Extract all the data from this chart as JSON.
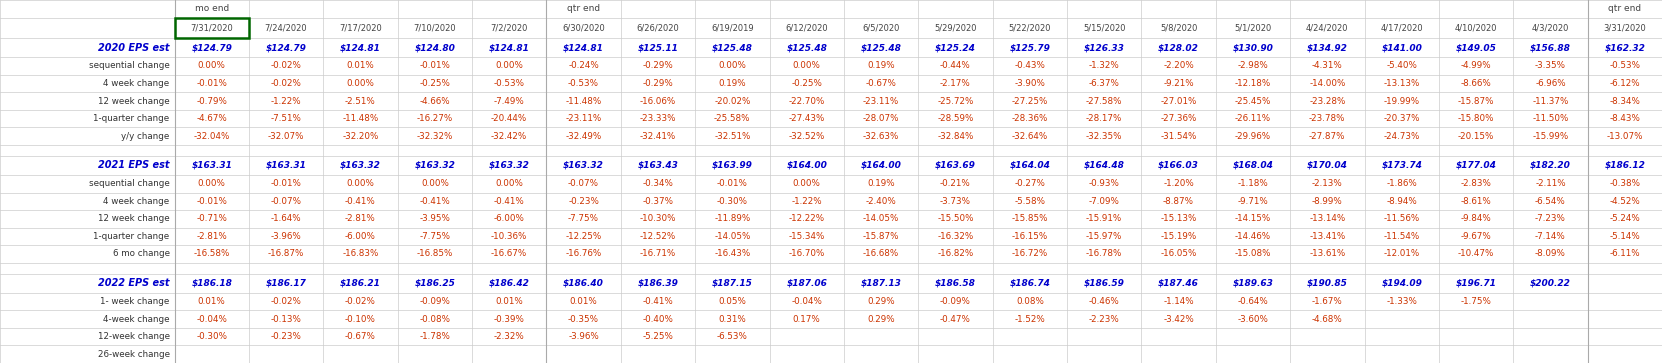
{
  "header_row2": [
    "",
    "7/31/2020",
    "7/24/2020",
    "7/17/2020",
    "7/10/2020",
    "7/2/2020",
    "6/30/2020",
    "6/26/2020",
    "6/19/2019",
    "6/12/2020",
    "6/5/2020",
    "5/29/2020",
    "5/22/2020",
    "5/15/2020",
    "5/8/2020",
    "5/1/2020",
    "4/24/2020",
    "4/17/2020",
    "4/10/2020",
    "4/3/2020",
    "3/31/2020"
  ],
  "section1_label": "2020 EPS est",
  "section1_rows": [
    [
      "sequential change",
      "0.00%",
      "-0.02%",
      "0.01%",
      "-0.01%",
      "0.00%",
      "-0.24%",
      "-0.29%",
      "0.00%",
      "0.00%",
      "0.19%",
      "-0.44%",
      "-0.43%",
      "-1.32%",
      "-2.20%",
      "-2.98%",
      "-4.31%",
      "-5.40%",
      "-4.99%",
      "-3.35%",
      "-0.53%"
    ],
    [
      "4 week change",
      "-0.01%",
      "-0.02%",
      "0.00%",
      "-0.25%",
      "-0.53%",
      "-0.53%",
      "-0.29%",
      "0.19%",
      "-0.25%",
      "-0.67%",
      "-2.17%",
      "-3.90%",
      "-6.37%",
      "-9.21%",
      "-12.18%",
      "-14.00%",
      "-13.13%",
      "-8.66%",
      "-6.96%",
      "-6.12%"
    ],
    [
      "12 week change",
      "-0.79%",
      "-1.22%",
      "-2.51%",
      "-4.66%",
      "-7.49%",
      "-11.48%",
      "-16.06%",
      "-20.02%",
      "-22.70%",
      "-23.11%",
      "-25.72%",
      "-27.25%",
      "-27.58%",
      "-27.01%",
      "-25.45%",
      "-23.28%",
      "-19.99%",
      "-15.87%",
      "-11.37%",
      "-8.34%"
    ],
    [
      "1-quarter change",
      "-4.67%",
      "-7.51%",
      "-11.48%",
      "-16.27%",
      "-20.44%",
      "-23.11%",
      "-23.33%",
      "-25.58%",
      "-27.43%",
      "-28.07%",
      "-28.59%",
      "-28.36%",
      "-28.17%",
      "-27.36%",
      "-26.11%",
      "-23.78%",
      "-20.37%",
      "-15.80%",
      "-11.50%",
      "-8.43%"
    ],
    [
      "y/y change",
      "-32.04%",
      "-32.07%",
      "-32.20%",
      "-32.32%",
      "-32.42%",
      "-32.49%",
      "-32.41%",
      "-32.51%",
      "-32.52%",
      "-32.63%",
      "-32.84%",
      "-32.64%",
      "-32.35%",
      "-31.54%",
      "-29.96%",
      "-27.87%",
      "-24.73%",
      "-20.15%",
      "-15.99%",
      "-13.07%"
    ]
  ],
  "section1_eps": [
    "$124.79",
    "$124.79",
    "$124.81",
    "$124.80",
    "$124.81",
    "$124.81",
    "$125.11",
    "$125.48",
    "$125.48",
    "$125.48",
    "$125.24",
    "$125.79",
    "$126.33",
    "$128.02",
    "$130.90",
    "$134.92",
    "$141.00",
    "$149.05",
    "$156.88",
    "$162.32"
  ],
  "section2_label": "2021 EPS est",
  "section2_rows": [
    [
      "sequential change",
      "0.00%",
      "-0.01%",
      "0.00%",
      "0.00%",
      "0.00%",
      "-0.07%",
      "-0.34%",
      "-0.01%",
      "0.00%",
      "0.19%",
      "-0.21%",
      "-0.27%",
      "-0.93%",
      "-1.20%",
      "-1.18%",
      "-2.13%",
      "-1.86%",
      "-2.83%",
      "-2.11%",
      "-0.38%"
    ],
    [
      "4 week change",
      "-0.01%",
      "-0.07%",
      "-0.41%",
      "-0.41%",
      "-0.41%",
      "-0.23%",
      "-0.37%",
      "-0.30%",
      "-1.22%",
      "-2.40%",
      "-3.73%",
      "-5.58%",
      "-7.09%",
      "-8.87%",
      "-9.71%",
      "-8.99%",
      "-8.94%",
      "-8.61%",
      "-6.54%",
      "-4.52%"
    ],
    [
      "12 week change",
      "-0.71%",
      "-1.64%",
      "-2.81%",
      "-3.95%",
      "-6.00%",
      "-7.75%",
      "-10.30%",
      "-11.89%",
      "-12.22%",
      "-14.05%",
      "-15.50%",
      "-15.85%",
      "-15.91%",
      "-15.13%",
      "-14.15%",
      "-13.14%",
      "-11.56%",
      "-9.84%",
      "-7.23%",
      "-5.24%"
    ],
    [
      "1-quarter change",
      "-2.81%",
      "-3.96%",
      "-6.00%",
      "-7.75%",
      "-10.36%",
      "-12.25%",
      "-12.52%",
      "-14.05%",
      "-15.34%",
      "-15.87%",
      "-16.32%",
      "-16.15%",
      "-15.97%",
      "-15.19%",
      "-14.46%",
      "-13.41%",
      "-11.54%",
      "-9.67%",
      "-7.14%",
      "-5.14%"
    ],
    [
      "6 mo change",
      "-16.58%",
      "-16.87%",
      "-16.83%",
      "-16.85%",
      "-16.67%",
      "-16.76%",
      "-16.71%",
      "-16.43%",
      "-16.70%",
      "-16.68%",
      "-16.82%",
      "-16.72%",
      "-16.78%",
      "-16.05%",
      "-15.08%",
      "-13.61%",
      "-12.01%",
      "-10.47%",
      "-8.09%",
      "-6.11%"
    ]
  ],
  "section2_eps": [
    "$163.31",
    "$163.31",
    "$163.32",
    "$163.32",
    "$163.32",
    "$163.32",
    "$163.43",
    "$163.99",
    "$164.00",
    "$164.00",
    "$163.69",
    "$164.04",
    "$164.48",
    "$166.03",
    "$168.04",
    "$170.04",
    "$173.74",
    "$177.04",
    "$182.20",
    "$186.12"
  ],
  "section3_label": "2022 EPS est",
  "section3_rows": [
    [
      "1- week change",
      "0.01%",
      "-0.02%",
      "-0.02%",
      "-0.09%",
      "0.01%",
      "0.01%",
      "-0.41%",
      "0.05%",
      "-0.04%",
      "0.29%",
      "-0.09%",
      "0.08%",
      "-0.46%",
      "-1.14%",
      "-0.64%",
      "-1.67%",
      "-1.33%",
      "-1.75%",
      "",
      ""
    ],
    [
      "4-week change",
      "-0.04%",
      "-0.13%",
      "-0.10%",
      "-0.08%",
      "-0.39%",
      "-0.35%",
      "-0.40%",
      "0.31%",
      "0.17%",
      "0.29%",
      "-0.47%",
      "-1.52%",
      "-2.23%",
      "-3.42%",
      "-3.60%",
      "-4.68%",
      "",
      "",
      "",
      ""
    ],
    [
      "12-week change",
      "-0.30%",
      "-0.23%",
      "-0.67%",
      "-1.78%",
      "-2.32%",
      "-3.96%",
      "-5.25%",
      "-6.53%",
      "",
      "",
      "",
      "",
      "",
      "",
      "",
      "",
      "",
      "",
      "",
      ""
    ],
    [
      "26-week change",
      "",
      "",
      "",
      "",
      "",
      "",
      "",
      "",
      "",
      "",
      "",
      "",
      "",
      "",
      "",
      "",
      "",
      "",
      "",
      ""
    ]
  ],
  "section3_eps": [
    "$186.18",
    "$186.17",
    "$186.21",
    "$186.25",
    "$186.42",
    "$186.40",
    "$186.39",
    "$187.15",
    "$187.06",
    "$187.13",
    "$186.58",
    "$186.74",
    "$186.59",
    "$187.46",
    "$189.63",
    "$190.85",
    "$194.09",
    "$196.71",
    "$200.22",
    ""
  ],
  "bg_color": "#ffffff",
  "eps_color": "#0000cc",
  "change_color": "#cc3300",
  "grid_color": "#cccccc",
  "highlight_border_color": "#006600"
}
